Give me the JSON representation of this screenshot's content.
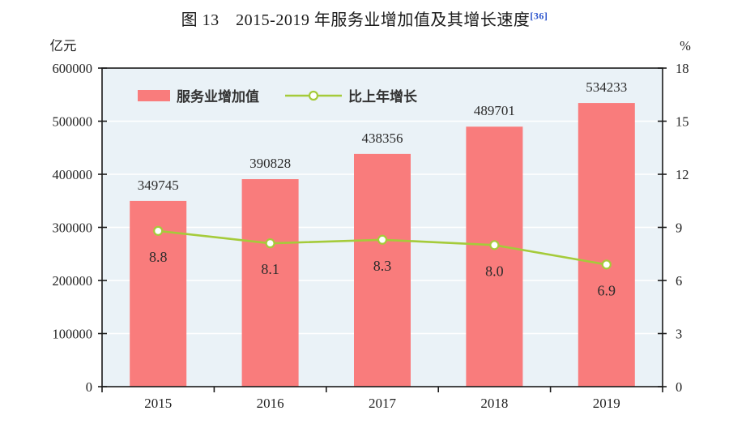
{
  "figure": {
    "title": "图 13　2015-2019 年服务业增加值及其增长速度",
    "footnote_ref": "[36]"
  },
  "chart_data": {
    "type": "bar+line",
    "categories": [
      "2015",
      "2016",
      "2017",
      "2018",
      "2019"
    ],
    "series": [
      {
        "name": "服务业增加值",
        "type": "bar",
        "axis": "left",
        "values": [
          349745,
          390828,
          438356,
          489701,
          534233
        ],
        "value_labels": [
          "349745",
          "390828",
          "438356",
          "489701",
          "534233"
        ],
        "color": "#f97c7c"
      },
      {
        "name": "比上年增长",
        "type": "line",
        "axis": "right",
        "values": [
          8.8,
          8.1,
          8.3,
          8.0,
          6.9
        ],
        "value_labels": [
          "8.8",
          "8.1",
          "8.3",
          "8.0",
          "6.9"
        ],
        "color": "#a5cb3a",
        "marker_fill": "#ffffff"
      }
    ],
    "left_axis": {
      "unit": "亿元",
      "min": 0,
      "max": 600000,
      "step": 100000,
      "tick_labels": [
        "0",
        "100000",
        "200000",
        "300000",
        "400000",
        "500000",
        "600000"
      ]
    },
    "right_axis": {
      "unit": "%",
      "min": 0,
      "max": 18,
      "step": 3,
      "tick_labels": [
        "0",
        "3",
        "6",
        "9",
        "12",
        "15",
        "18"
      ]
    },
    "legend": {
      "position": "top-left-inside",
      "items": [
        "服务业增加值",
        "比上年增长"
      ]
    },
    "styles": {
      "plot_bg": "#eaf2f7",
      "grid_color": "#ffffff",
      "frame_color": "#1a1a1a",
      "text_color": "#222222",
      "label_color": "#2b2b2b",
      "ref_color": "#2952cc"
    }
  }
}
